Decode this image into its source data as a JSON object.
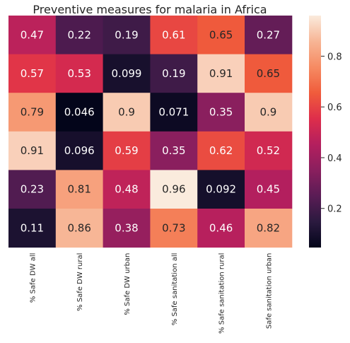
{
  "chart_data": {
    "type": "heatmap",
    "title": "Preventive measures for malaria in Africa",
    "columns": [
      "% Safe DW all",
      "% Safe DW rural",
      "% Safe DW urban",
      "% Safe sanitation all",
      "% Safe sanitation rural",
      "Safe sanitation urban"
    ],
    "values": [
      [
        0.47,
        0.22,
        0.19,
        0.61,
        0.65,
        0.27
      ],
      [
        0.57,
        0.53,
        0.099,
        0.19,
        0.91,
        0.65
      ],
      [
        0.79,
        0.046,
        0.9,
        0.071,
        0.35,
        0.9
      ],
      [
        0.91,
        0.096,
        0.59,
        0.35,
        0.62,
        0.52
      ],
      [
        0.23,
        0.81,
        0.48,
        0.96,
        0.092,
        0.45
      ],
      [
        0.11,
        0.86,
        0.38,
        0.73,
        0.46,
        0.82
      ]
    ],
    "labels": [
      [
        "0.47",
        "0.22",
        "0.19",
        "0.61",
        "0.65",
        "0.27"
      ],
      [
        "0.57",
        "0.53",
        "0.099",
        "0.19",
        "0.91",
        "0.65"
      ],
      [
        "0.79",
        "0.046",
        "0.9",
        "0.071",
        "0.35",
        "0.9"
      ],
      [
        "0.91",
        "0.096",
        "0.59",
        "0.35",
        "0.62",
        "0.52"
      ],
      [
        "0.23",
        "0.81",
        "0.48",
        "0.96",
        "0.092",
        "0.45"
      ],
      [
        "0.11",
        "0.86",
        "0.38",
        "0.73",
        "0.46",
        "0.82"
      ]
    ],
    "colorbar": {
      "min": 0.046,
      "max": 0.96,
      "ticks": [
        0.2,
        0.4,
        0.6,
        0.8
      ],
      "tick_labels": [
        "0.2",
        "0.4",
        "0.6",
        "0.8"
      ]
    },
    "colormap": "rocket",
    "colormap_stops": [
      "#03051a",
      "#2b1a3f",
      "#5a1c55",
      "#8a1f5e",
      "#b41f5e",
      "#de2e4b",
      "#f05c3b",
      "#f68b63",
      "#f7b595",
      "#faebdd"
    ]
  }
}
